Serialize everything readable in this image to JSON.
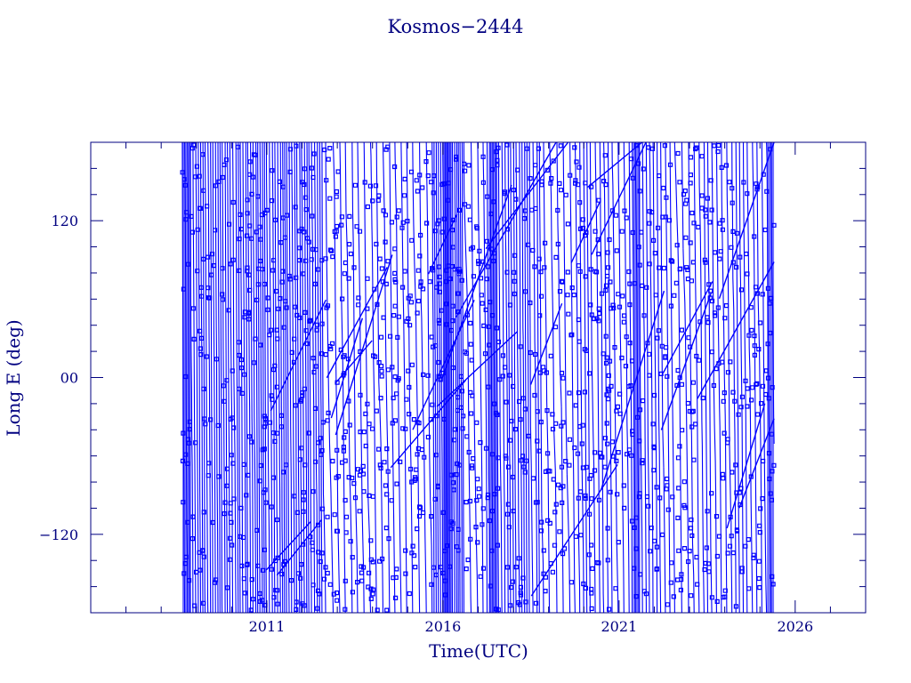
{
  "chart_data": {
    "type": "scatter",
    "title": "Kosmos−2444",
    "xlabel": "Time(UTC)",
    "ylabel": "Long E (deg)",
    "xlim": [
      2006.0,
      2028.0
    ],
    "ylim": [
      -180,
      180
    ],
    "x_ticks": [
      2011,
      2016,
      2021,
      2026
    ],
    "x_tick_labels": [
      "2011",
      "2016",
      "2021",
      "2026"
    ],
    "y_ticks": [
      -120,
      0,
      120
    ],
    "y_tick_labels": [
      "−120",
      "00",
      "120"
    ],
    "data_range_x": [
      2008.6,
      2025.4
    ],
    "grid": false,
    "legend": "none",
    "colors": {
      "axis": "#000080",
      "data": "#0000ff",
      "background": "#ffffff"
    }
  }
}
